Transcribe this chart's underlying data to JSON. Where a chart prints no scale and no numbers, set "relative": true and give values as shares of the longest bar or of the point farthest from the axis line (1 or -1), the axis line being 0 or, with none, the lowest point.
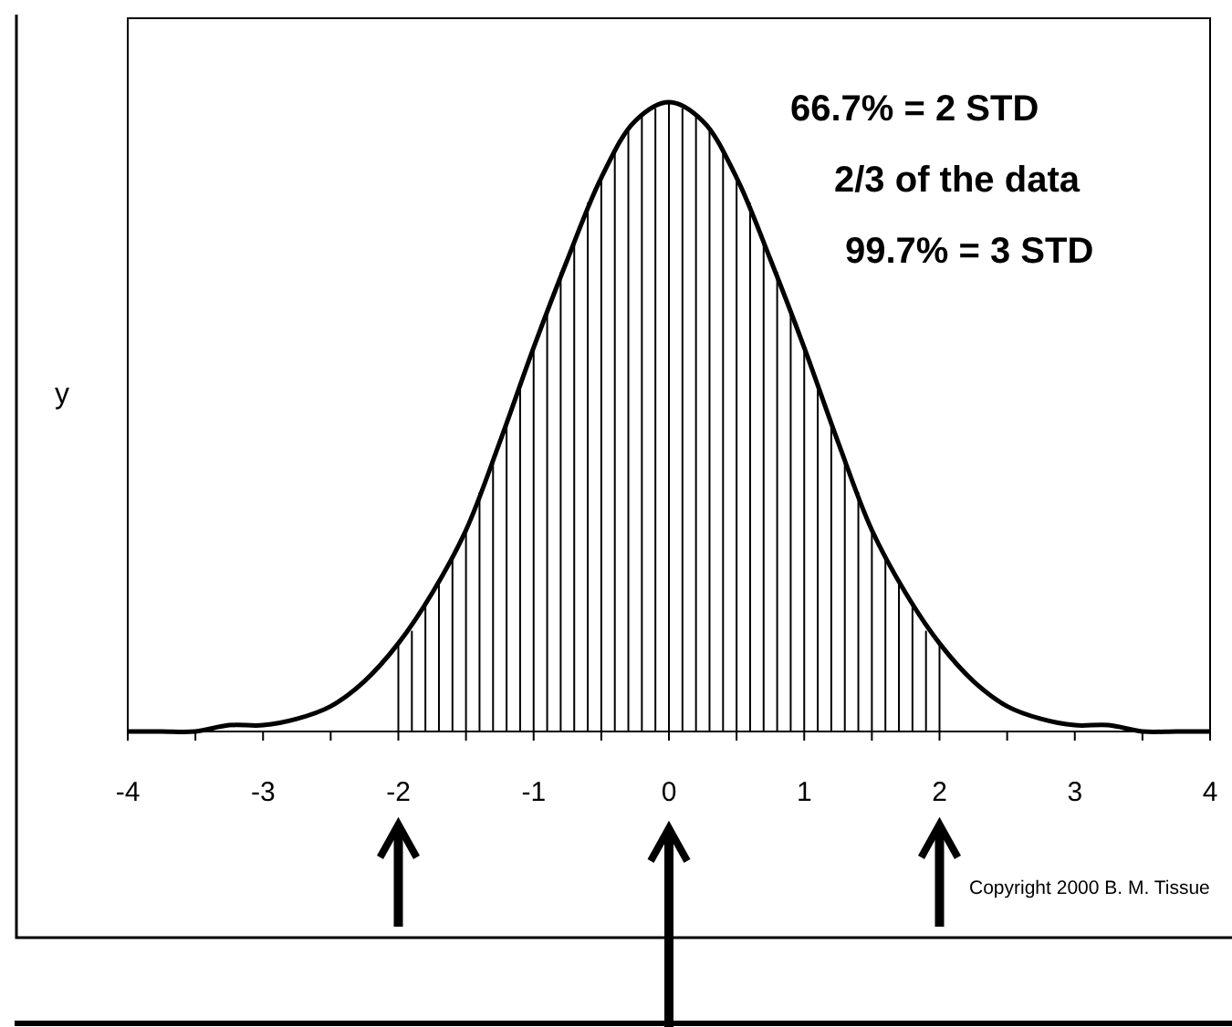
{
  "chart_data": {
    "type": "line",
    "ylabel": "y",
    "relative": true,
    "annotations": [
      "66.7% = 2 STD",
      "2/3 of the data",
      "99.7% = 3 STD",
      "Copyright 2000 B. M. Tissue"
    ],
    "xlim": [
      -4,
      4
    ],
    "xticks": [
      -4,
      {
        "value": -3.5,
        "label": null
      },
      -3,
      {
        "value": -2.5,
        "label": null
      },
      -2,
      {
        "value": -1.5,
        "label": null
      },
      -1,
      {
        "value": -0.5,
        "label": null
      },
      0,
      {
        "value": 0.5,
        "label": null
      },
      1,
      {
        "value": 1.5,
        "label": null
      },
      2,
      {
        "value": 2.5,
        "label": null
      },
      3,
      {
        "value": 3.5,
        "label": null
      },
      4
    ],
    "series": [
      {
        "color": "#000000",
        "x": [
          -4,
          -3.75,
          -3.5,
          -3.25,
          -3,
          -2.75,
          -2.5,
          -2.25,
          -2,
          -1.75,
          -1.5,
          -1.25,
          -1,
          -0.75,
          -0.5,
          -0.25,
          0,
          0.25,
          0.5,
          0.75,
          1,
          1.25,
          1.5,
          1.75,
          2,
          2.25,
          2.5,
          2.75,
          3,
          3.25,
          3.5,
          3.75,
          4
        ],
        "values": [
          0,
          0,
          0,
          0.01,
          0.01,
          0.02,
          0.04,
          0.08,
          0.14,
          0.22,
          0.32,
          0.46,
          0.61,
          0.75,
          0.88,
          0.97,
          1,
          0.97,
          0.88,
          0.75,
          0.61,
          0.46,
          0.32,
          0.22,
          0.14,
          0.08,
          0.04,
          0.02,
          0.01,
          0.01,
          0,
          0,
          0
        ]
      },
      {
        "type": "bar",
        "color": "#000000",
        "x": [
          -2,
          -1.9,
          -1.8,
          -1.7,
          -1.6,
          -1.5,
          -1.4,
          -1.3,
          -1.2,
          -1.1,
          -1,
          -0.9,
          -0.8,
          -0.7,
          -0.6,
          -0.5,
          -0.4,
          -0.3,
          -0.2,
          -0.1,
          0,
          0.1,
          0.2,
          0.3,
          0.4,
          0.5,
          0.6,
          0.7,
          0.8,
          0.9,
          1,
          1.1,
          1.2,
          1.3,
          1.4,
          1.5,
          1.6,
          1.7,
          1.8,
          1.9,
          2
        ],
        "values": [
          0.14,
          0.16,
          0.2,
          0.24,
          0.28,
          0.32,
          0.38,
          0.43,
          0.49,
          0.55,
          0.61,
          0.67,
          0.73,
          0.78,
          0.84,
          0.88,
          0.92,
          0.96,
          0.98,
          0.99,
          1,
          0.99,
          0.98,
          0.96,
          0.92,
          0.88,
          0.84,
          0.78,
          0.73,
          0.67,
          0.61,
          0.55,
          0.49,
          0.43,
          0.38,
          0.32,
          0.28,
          0.24,
          0.2,
          0.16,
          0.14
        ]
      }
    ]
  }
}
